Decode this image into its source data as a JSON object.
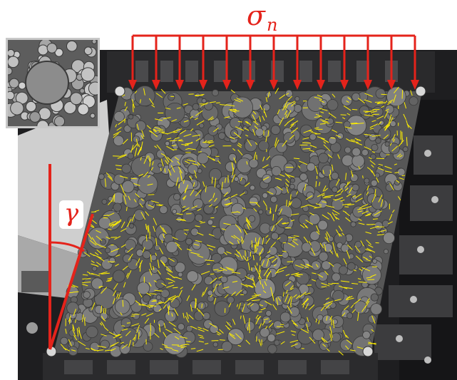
{
  "labels": {
    "normal_stress": "σ",
    "normal_stress_sub": "n",
    "shear_angle": "γ"
  },
  "colors": {
    "load_arrows": "#e4231b",
    "displacement_vectors": "#ffef00",
    "particles": "#6b6b6b",
    "frame": "#1d1d1f"
  },
  "scene": {
    "description_icons": [
      "load-arrow-icon",
      "angle-arc-icon",
      "particle-inset"
    ],
    "arrow_count": 13
  }
}
